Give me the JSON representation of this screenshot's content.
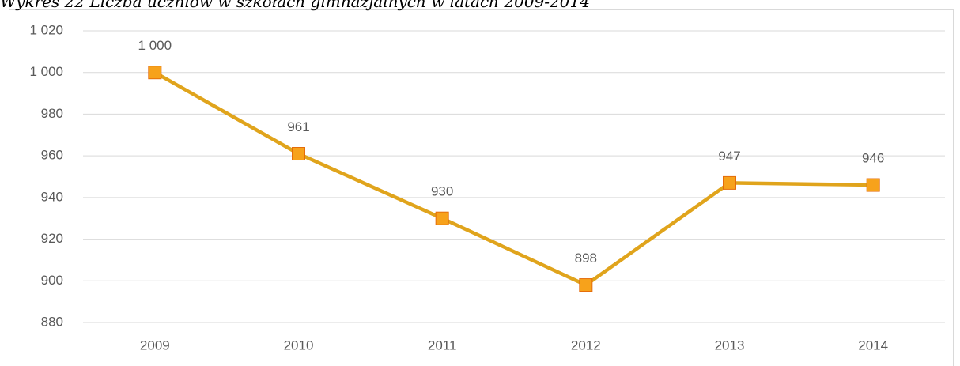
{
  "chart_data": {
    "type": "line",
    "title": "Wykres 22 Liczba uczniów w szkołach gimnazjalnych w latach 2009-2014",
    "categories": [
      "2009",
      "2010",
      "2011",
      "2012",
      "2013",
      "2014"
    ],
    "series": [
      {
        "name": "Liczba uczniów",
        "color": "#e0a41c",
        "marker_color": "#f7a21b",
        "values": [
          1000,
          961,
          930,
          898,
          947,
          946
        ],
        "value_labels": [
          "1 000",
          "961",
          "930",
          "898",
          "947",
          "946"
        ]
      }
    ],
    "ylim": [
      880,
      1020
    ],
    "yticks": [
      880,
      900,
      920,
      940,
      960,
      980,
      {
        "value": 1000,
        "label": "1 000"
      },
      {
        "value": 1020,
        "label": "1 020"
      }
    ],
    "grid": true
  }
}
